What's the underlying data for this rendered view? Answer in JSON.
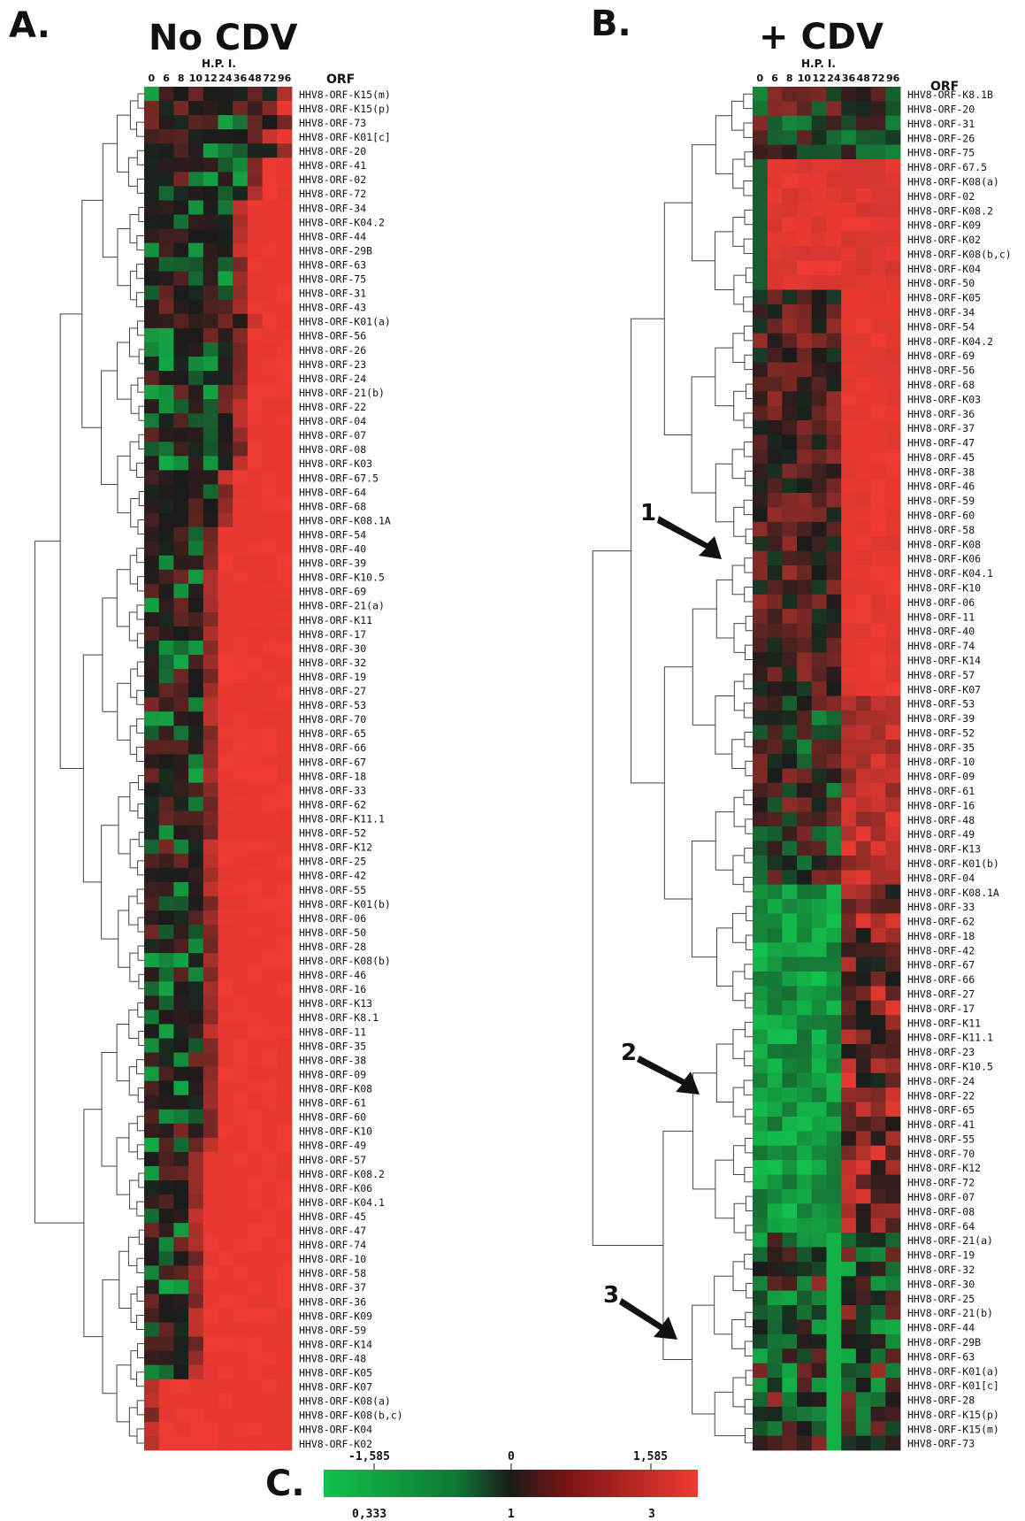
{
  "chart_data": [
    {
      "type": "heatmap",
      "panel": "A.",
      "title": "No CDV",
      "x_title": "H.P. I.",
      "row_header": "ORF",
      "columns": [
        "0",
        "6",
        "8",
        "10",
        "12",
        "24",
        "36",
        "48",
        "72",
        "96"
      ],
      "rows": [
        "HHV8-ORF-K15(m)",
        "HHV8-ORF-K15(p)",
        "HHV8-ORF-73",
        "HHV8-ORF-K01[c]",
        "HHV8-ORF-20",
        "HHV8-ORF-41",
        "HHV8-ORF-02",
        "HHV8-ORF-72",
        "HHV8-ORF-34",
        "HHV8-ORF-K04.2",
        "HHV8-ORF-44",
        "HHV8-ORF-29B",
        "HHV8-ORF-63",
        "HHV8-ORF-75",
        "HHV8-ORF-31",
        "HHV8-ORF-43",
        "HHV8-ORF-K01(a)",
        "HHV8-ORF-56",
        "HHV8-ORF-26",
        "HHV8-ORF-23",
        "HHV8-ORF-24",
        "HHV8-ORF-21(b)",
        "HHV8-ORF-22",
        "HHV8-ORF-04",
        "HHV8-ORF-07",
        "HHV8-ORF-08",
        "HHV8-ORF-K03",
        "HHV8-ORF-67.5",
        "HHV8-ORF-64",
        "HHV8-ORF-68",
        "HHV8-ORF-K08.1A",
        "HHV8-ORF-54",
        "HHV8-ORF-40",
        "HHV8-ORF-39",
        "HHV8-ORF-K10.5",
        "HHV8-ORF-69",
        "HHV8-ORF-21(a)",
        "HHV8-ORF-K11",
        "HHV8-ORF-17",
        "HHV8-ORF-30",
        "HHV8-ORF-32",
        "HHV8-ORF-19",
        "HHV8-ORF-27",
        "HHV8-ORF-53",
        "HHV8-ORF-70",
        "HHV8-ORF-65",
        "HHV8-ORF-66",
        "HHV8-ORF-67",
        "HHV8-ORF-18",
        "HHV8-ORF-33",
        "HHV8-ORF-62",
        "HHV8-ORF-K11.1",
        "HHV8-ORF-52",
        "HHV8-ORF-K12",
        "HHV8-ORF-25",
        "HHV8-ORF-42",
        "HHV8-ORF-55",
        "HHV8-ORF-K01(b)",
        "HHV8-ORF-06",
        "HHV8-ORF-50",
        "HHV8-ORF-28",
        "HHV8-ORF-K08(b)",
        "HHV8-ORF-46",
        "HHV8-ORF-16",
        "HHV8-ORF-K13",
        "HHV8-ORF-K8.1",
        "HHV8-ORF-11",
        "HHV8-ORF-35",
        "HHV8-ORF-38",
        "HHV8-ORF-09",
        "HHV8-ORF-K08",
        "HHV8-ORF-61",
        "HHV8-ORF-60",
        "HHV8-ORF-K10",
        "HHV8-ORF-49",
        "HHV8-ORF-57",
        "HHV8-ORF-K08.2",
        "HHV8-ORF-K06",
        "HHV8-ORF-K04.1",
        "HHV8-ORF-45",
        "HHV8-ORF-47",
        "HHV8-ORF-74",
        "HHV8-ORF-10",
        "HHV8-ORF-58",
        "HHV8-ORF-37",
        "HHV8-ORF-36",
        "HHV8-ORF-K09",
        "HHV8-ORF-59",
        "HHV8-ORF-K14",
        "HHV8-ORF-48",
        "HHV8-ORF-K05",
        "HHV8-ORF-K07",
        "HHV8-ORF-K08(a)",
        "HHV8-ORF-K08(b,c)",
        "HHV8-ORF-K04",
        "HHV8-ORF-K02"
      ],
      "onset_column": [
        10,
        9,
        10,
        9,
        10,
        8,
        8,
        8,
        7,
        7,
        7,
        7,
        7,
        7,
        7,
        7,
        8,
        7,
        7,
        7,
        7,
        7,
        7,
        7,
        7,
        7,
        7,
        6,
        6,
        6,
        6,
        5,
        5,
        5,
        5,
        5,
        5,
        5,
        5,
        5,
        5,
        5,
        5,
        5,
        5,
        5,
        5,
        5,
        5,
        5,
        5,
        5,
        5,
        5,
        5,
        5,
        5,
        5,
        5,
        5,
        5,
        5,
        5,
        5,
        5,
        5,
        5,
        5,
        5,
        5,
        5,
        5,
        5,
        5,
        5,
        4,
        4,
        4,
        4,
        4,
        4,
        4,
        4,
        4,
        4,
        4,
        4,
        4,
        4,
        4,
        4,
        1,
        1,
        1,
        1,
        1
      ],
      "color_scale": {
        "low": "#12c24d",
        "mid": "#1a1a1a",
        "high": "#ef3a32"
      }
    },
    {
      "type": "heatmap",
      "panel": "B.",
      "title": "+ CDV",
      "x_title": "H.P. I.",
      "row_header": "ORF",
      "columns": [
        "0",
        "6",
        "8",
        "10",
        "12",
        "24",
        "36",
        "48",
        "72",
        "96"
      ],
      "rows": [
        "HHV8-ORF-K8.1B",
        "HHV8-ORF-20",
        "HHV8-ORF-31",
        "HHV8-ORF-26",
        "HHV8-ORF-75",
        "HHV8-ORF-67.5",
        "HHV8-ORF-K08(a)",
        "HHV8-ORF-02",
        "HHV8-ORF-K08.2",
        "HHV8-ORF-K09",
        "HHV8-ORF-K02",
        "HHV8-ORF-K08(b,c)",
        "HHV8-ORF-K04",
        "HHV8-ORF-50",
        "HHV8-ORF-K05",
        "HHV8-ORF-34",
        "HHV8-ORF-54",
        "HHV8-ORF-K04.2",
        "HHV8-ORF-69",
        "HHV8-ORF-56",
        "HHV8-ORF-68",
        "HHV8-ORF-K03",
        "HHV8-ORF-36",
        "HHV8-ORF-37",
        "HHV8-ORF-47",
        "HHV8-ORF-45",
        "HHV8-ORF-38",
        "HHV8-ORF-46",
        "HHV8-ORF-59",
        "HHV8-ORF-60",
        "HHV8-ORF-58",
        "HHV8-ORF-K08",
        "HHV8-ORF-K06",
        "HHV8-ORF-K04.1",
        "HHV8-ORF-K10",
        "HHV8-ORF-06",
        "HHV8-ORF-11",
        "HHV8-ORF-40",
        "HHV8-ORF-74",
        "HHV8-ORF-K14",
        "HHV8-ORF-57",
        "HHV8-ORF-K07",
        "HHV8-ORF-53",
        "HHV8-ORF-39",
        "HHV8-ORF-52",
        "HHV8-ORF-35",
        "HHV8-ORF-10",
        "HHV8-ORF-09",
        "HHV8-ORF-61",
        "HHV8-ORF-16",
        "HHV8-ORF-48",
        "HHV8-ORF-49",
        "HHV8-ORF-K13",
        "HHV8-ORF-K01(b)",
        "HHV8-ORF-04",
        "HHV8-ORF-K08.1A",
        "HHV8-ORF-33",
        "HHV8-ORF-62",
        "HHV8-ORF-18",
        "HHV8-ORF-42",
        "HHV8-ORF-67",
        "HHV8-ORF-66",
        "HHV8-ORF-27",
        "HHV8-ORF-17",
        "HHV8-ORF-K11",
        "HHV8-ORF-K11.1",
        "HHV8-ORF-23",
        "HHV8-ORF-K10.5",
        "HHV8-ORF-24",
        "HHV8-ORF-22",
        "HHV8-ORF-65",
        "HHV8-ORF-41",
        "HHV8-ORF-55",
        "HHV8-ORF-70",
        "HHV8-ORF-K12",
        "HHV8-ORF-72",
        "HHV8-ORF-07",
        "HHV8-ORF-08",
        "HHV8-ORF-64",
        "HHV8-ORF-21(a)",
        "HHV8-ORF-19",
        "HHV8-ORF-32",
        "HHV8-ORF-30",
        "HHV8-ORF-25",
        "HHV8-ORF-21(b)",
        "HHV8-ORF-44",
        "HHV8-ORF-29B",
        "HHV8-ORF-63",
        "HHV8-ORF-K01(a)",
        "HHV8-ORF-K01[c]",
        "HHV8-ORF-28",
        "HHV8-ORF-K15(p)",
        "HHV8-ORF-K15(m)",
        "HHV8-ORF-73"
      ],
      "annotations": [
        "1",
        "2",
        "3"
      ],
      "color_scale": {
        "low": "#12c24d",
        "mid": "#1a1a1a",
        "high": "#ef3a32"
      }
    }
  ],
  "colorbar": {
    "panel": "C.",
    "top_ticks": [
      "-1,585",
      "0",
      "1,585"
    ],
    "bottom_ticks": [
      "0,333",
      "1",
      "3"
    ]
  }
}
